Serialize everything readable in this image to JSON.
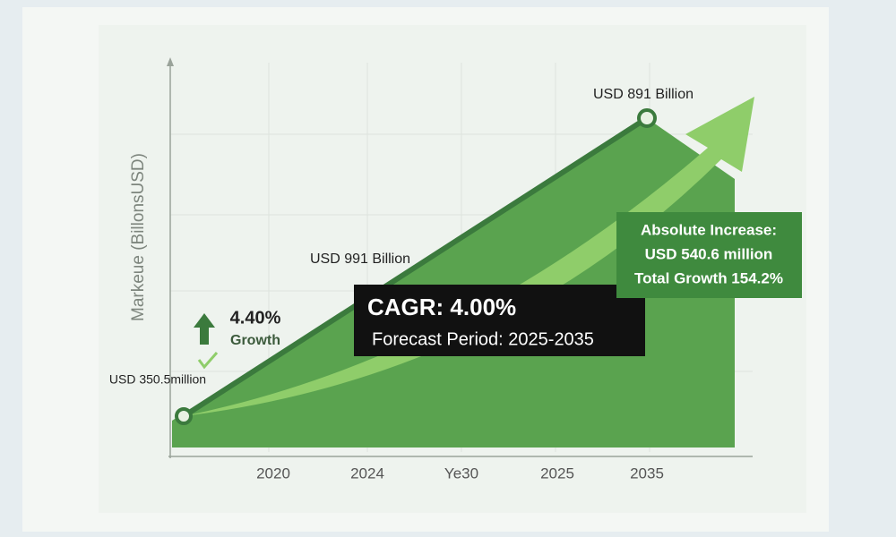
{
  "chart_data": {
    "type": "line",
    "y_label": "Markeue (BillonsUSD)",
    "categories": [
      "2020",
      "2024",
      "Ye30",
      "2025",
      "2035"
    ],
    "annotations": {
      "end": "USD 891 Billion",
      "middle": "USD 991 Billion",
      "start": "USD 350.5million",
      "growth_value": "4.40%",
      "growth_label": "Growth",
      "cagr": "CAGR: 4.00%",
      "forecast": "Forecast Period: 2025-2035",
      "increase_title": "Absolute Increase:",
      "increase_value": "USD 540.6 million",
      "total_growth": "Total Growth 154.2%"
    }
  }
}
